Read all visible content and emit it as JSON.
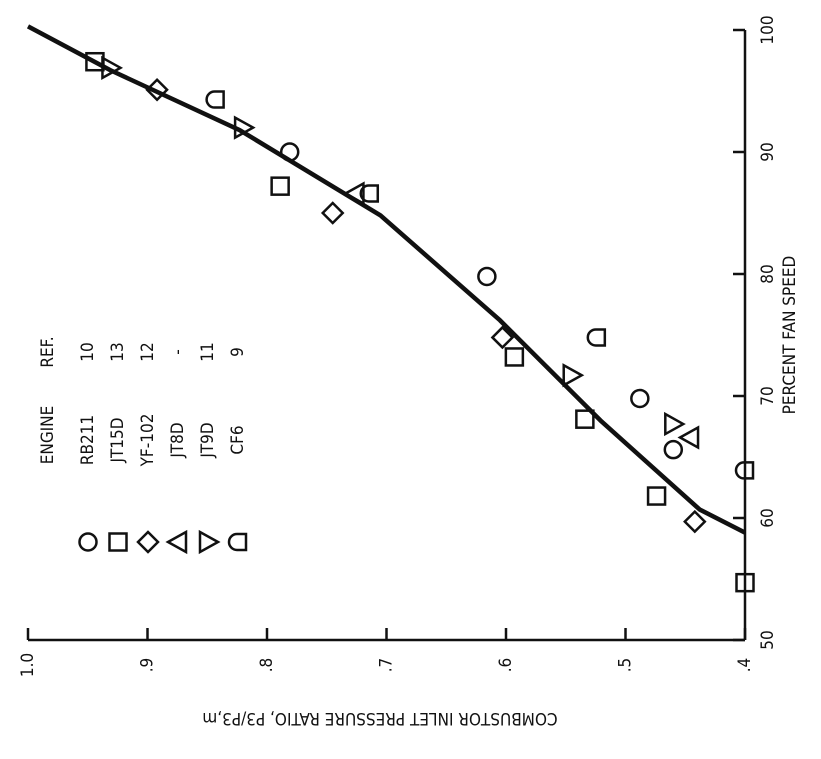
{
  "chart_data": {
    "type": "scatter",
    "x_label": "PERCENT FAN SPEED",
    "y_label": "COMBUSTOR INLET PRESSURE RATIO, P3/P3,m",
    "legend_headers": [
      "ENGINE",
      "REF."
    ],
    "xlim": [
      50,
      100
    ],
    "xticks": [
      50,
      60,
      70,
      80,
      90,
      100
    ],
    "ylim": [
      0.4,
      1.0
    ],
    "yticks": [
      {
        "value": 0.4,
        "label": ".4"
      },
      {
        "value": 0.5,
        "label": ".5"
      },
      {
        "value": 0.6,
        "label": ".6"
      },
      {
        "value": 0.7,
        "label": ".7"
      },
      {
        "value": 0.8,
        "label": ".8"
      },
      {
        "value": 0.9,
        "label": ".9"
      },
      {
        "value": 1.0,
        "label": "1.0"
      }
    ],
    "color": "#111111",
    "series": [
      {
        "name": "RB211",
        "ref": "10",
        "marker": "circle",
        "x": [
          90,
          79.8,
          69.8,
          65.6
        ],
        "y": [
          0.781,
          0.616,
          0.488,
          0.46
        ]
      },
      {
        "name": "JT15D",
        "ref": "13",
        "marker": "square",
        "x": [
          97.4,
          87.2,
          73.2,
          68.1,
          61.8,
          54.7
        ],
        "y": [
          0.944,
          0.789,
          0.593,
          0.534,
          0.474,
          0.4
        ]
      },
      {
        "name": "YF-102",
        "ref": "12",
        "marker": "diamond",
        "x": [
          95.1,
          85,
          74.8,
          59.7
        ],
        "y": [
          0.892,
          0.745,
          0.603,
          0.442
        ]
      },
      {
        "name": "JT8D",
        "ref": "-",
        "marker": "triangle-left",
        "x": [
          86.6,
          66.6
        ],
        "y": [
          0.726,
          0.446
        ]
      },
      {
        "name": "JT9D",
        "ref": "11",
        "marker": "triangle-down",
        "x": [
          96.9,
          92,
          71.7,
          67.7
        ],
        "y": [
          0.931,
          0.82,
          0.545,
          0.46
        ]
      },
      {
        "name": "CF6",
        "ref": "9",
        "marker": "d-shape",
        "x": [
          94.3,
          86.6,
          74.8,
          63.9
        ],
        "y": [
          0.843,
          0.714,
          0.524,
          0.4
        ]
      }
    ],
    "curve": {
      "x": [
        100.3,
        96.7,
        91.8,
        84.8,
        76.2,
        68,
        60.7,
        58.8
      ],
      "y": [
        1.0,
        0.931,
        0.823,
        0.705,
        0.605,
        0.521,
        0.438,
        0.4
      ]
    }
  }
}
